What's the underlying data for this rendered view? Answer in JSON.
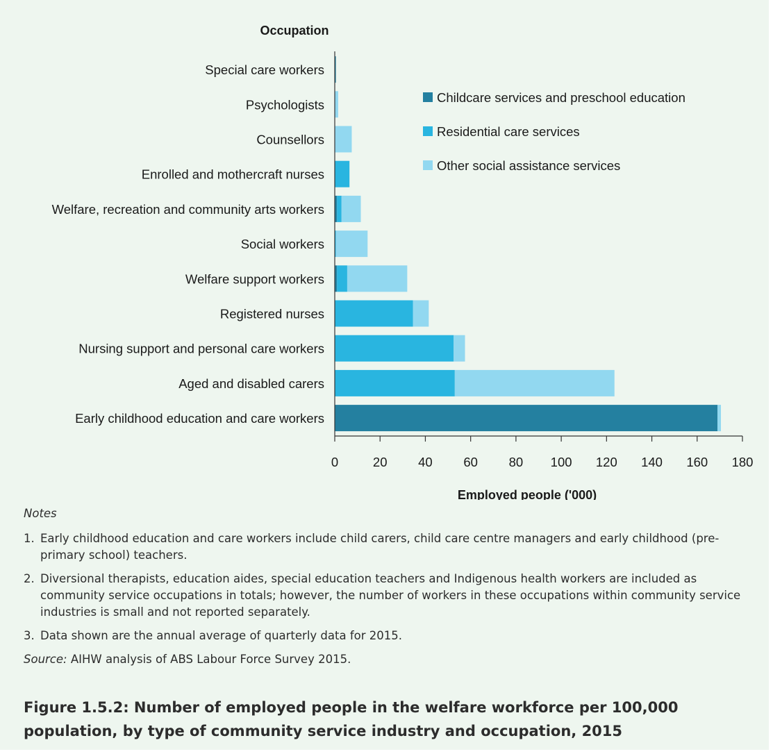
{
  "chart_data": {
    "type": "bar",
    "orientation": "horizontal",
    "stacked": true,
    "y_axis_title": "Occupation",
    "xlabel": "Employed people ('000)",
    "xlim": [
      0,
      180
    ],
    "x_ticks": [
      0,
      20,
      40,
      60,
      80,
      100,
      120,
      140,
      160,
      180
    ],
    "categories": [
      "Special care workers",
      "Psychologists",
      "Counsellors",
      "Enrolled and mothercraft nurses",
      "Welfare, recreation and community arts workers",
      "Social workers",
      "Welfare support workers",
      "Registered nurses",
      "Nursing support and personal care workers",
      "Aged and disabled carers",
      "Early childhood education and care workers"
    ],
    "series": [
      {
        "name": "Childcare services and preschool education",
        "color": "#2480a0",
        "values": [
          0.5,
          0,
          0,
          0,
          1.0,
          0,
          1.0,
          0,
          0,
          0,
          169.0
        ]
      },
      {
        "name": "Residential care services",
        "color": "#29b5e0",
        "values": [
          0,
          0,
          0,
          6.5,
          2.0,
          0.5,
          4.5,
          34.5,
          52.5,
          53.0,
          0
        ]
      },
      {
        "name": "Other social assistance services",
        "color": "#92d8f0",
        "values": [
          0,
          1.5,
          7.5,
          0,
          8.5,
          14.0,
          26.5,
          7.0,
          5.0,
          70.5,
          1.5
        ]
      }
    ],
    "legend_position": "top-right",
    "grid": false
  },
  "notes": {
    "heading": "Notes",
    "items": [
      {
        "num": "1.",
        "text": "Early childhood education and care workers include child carers, child care centre managers and early childhood (pre-primary school) teachers."
      },
      {
        "num": "2.",
        "text": "Diversional therapists, education aides, special education teachers and Indigenous health workers are included as community service occupations in totals; however, the number of workers in these occupations within community service industries is small and not reported separately."
      },
      {
        "num": "3.",
        "text": "Data shown are the annual average of quarterly data for 2015."
      }
    ],
    "source_label": "Source:",
    "source_text": " AIHW analysis of ABS Labour Force Survey 2015."
  },
  "caption": "Figure 1.5.2: Number of employed people in the welfare workforce per 100,000 population, by type of community service industry and occupation, 2015"
}
